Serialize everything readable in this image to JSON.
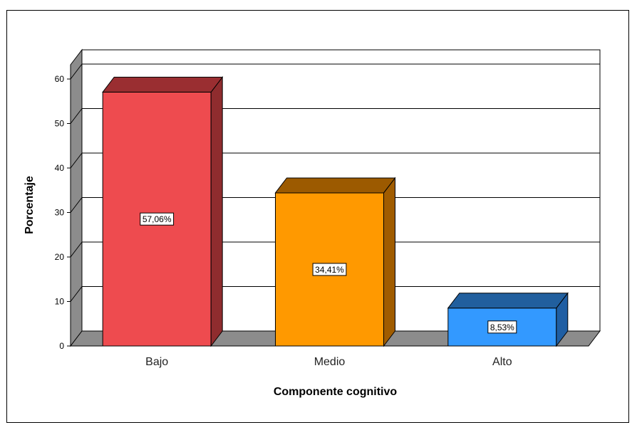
{
  "chart_data": {
    "type": "bar",
    "title": "",
    "xlabel": "Componente cognitivo",
    "ylabel": "Porcentaje",
    "ylim": [
      0,
      60
    ],
    "yticks": [
      0,
      10,
      20,
      30,
      40,
      50,
      60
    ],
    "yticks_labels": [
      "0",
      "10",
      "20",
      "30",
      "40",
      "50",
      "60"
    ],
    "categories": [
      "Bajo",
      "Medio",
      "Alto"
    ],
    "values": [
      57.06,
      34.41,
      8.53
    ],
    "data_labels": [
      "57,06%",
      "34,41%",
      "8,53%"
    ],
    "colors": [
      "#ee4b4f",
      "#ff9900",
      "#3399ff"
    ],
    "side_colors": [
      "#8f2c2e",
      "#a05c00",
      "#1f5ea3"
    ],
    "top_colors": [
      "#9a2e31",
      "#9c5a00",
      "#215f9e"
    ],
    "grid": true,
    "style": "3d"
  }
}
